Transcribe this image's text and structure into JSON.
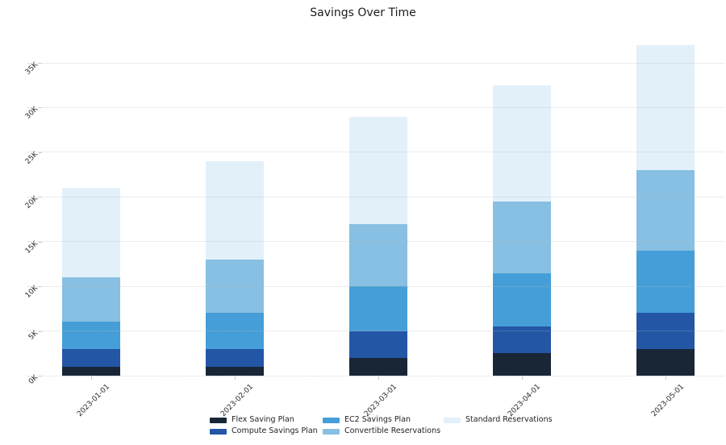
{
  "title": "Savings Over Time",
  "chart_data": {
    "type": "bar",
    "stacked": true,
    "title": "Savings Over Time",
    "xlabel": "",
    "ylabel": "",
    "categories": [
      "2023-01-01",
      "2023-02-01",
      "2023-03-01",
      "2023-04-01",
      "2023-05-01"
    ],
    "series": [
      {
        "name": "Flex Saving Plan",
        "color": "#192636",
        "values": [
          1000,
          1000,
          2000,
          2500,
          3000
        ]
      },
      {
        "name": "Compute Savings Plan",
        "color": "#2356a5",
        "values": [
          2000,
          2000,
          3000,
          3000,
          4000
        ]
      },
      {
        "name": "EC2 Savings Plan",
        "color": "#459ed7",
        "values": [
          3000,
          4000,
          5000,
          6000,
          7000
        ]
      },
      {
        "name": "Convertible Reservations",
        "color": "#87c0e2",
        "values": [
          5000,
          6000,
          7000,
          8000,
          9000
        ]
      },
      {
        "name": "Standard Reservations",
        "color": "#e2f0fa",
        "values": [
          10000,
          11000,
          12000,
          13000,
          14000
        ]
      }
    ],
    "bar_totals": [
      21000,
      24000,
      29000,
      32500,
      37000
    ],
    "y_ticks": [
      {
        "value": 0,
        "label": "0K"
      },
      {
        "value": 5000,
        "label": "5K"
      },
      {
        "value": 10000,
        "label": "10K"
      },
      {
        "value": 15000,
        "label": "15K"
      },
      {
        "value": 20000,
        "label": "20K"
      },
      {
        "value": 25000,
        "label": "25K"
      },
      {
        "value": 30000,
        "label": "30K"
      },
      {
        "value": 35000,
        "label": "35K"
      }
    ],
    "ylim": [
      0,
      38000
    ],
    "grid": "horizontal-dotted",
    "tick_rotation_deg": 45,
    "legend_position": "bottom-center"
  }
}
